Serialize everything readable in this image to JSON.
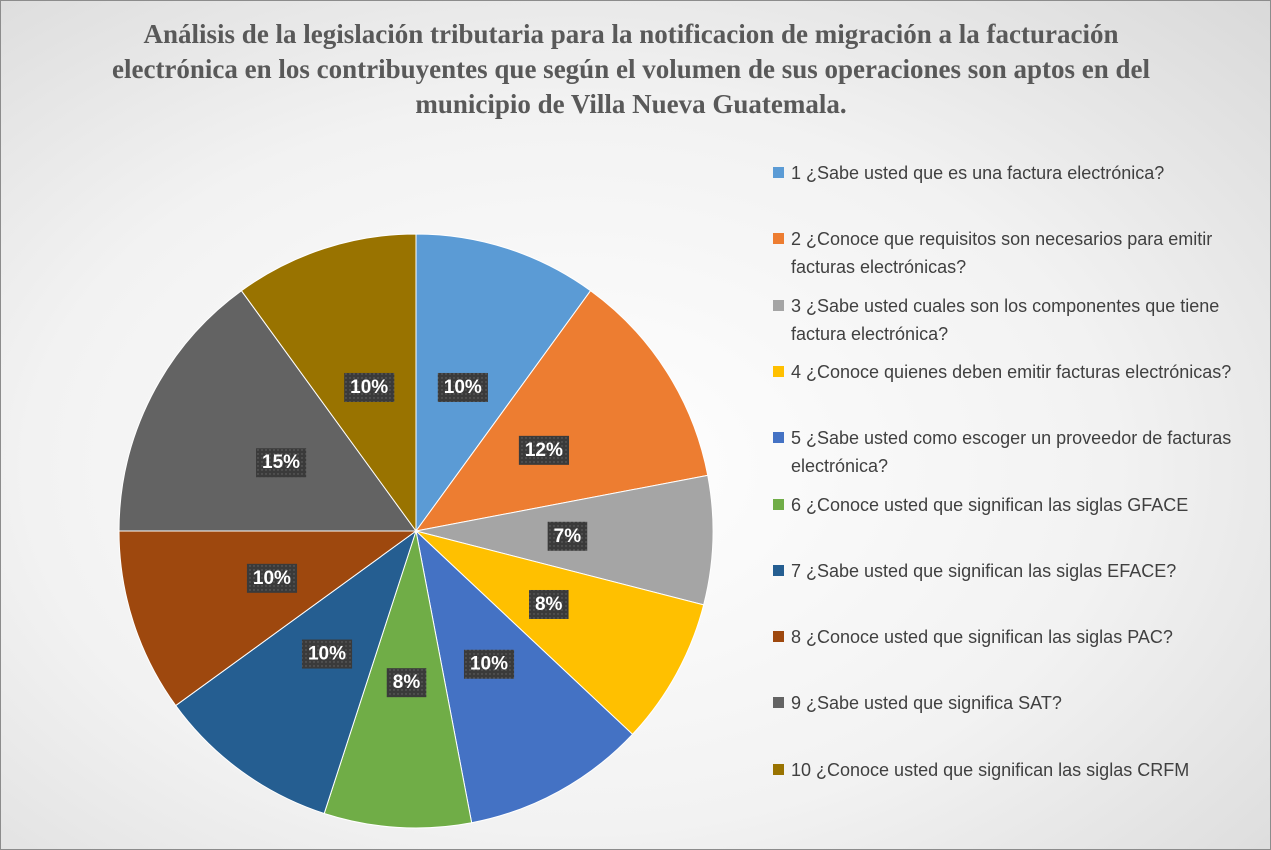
{
  "chart_data": {
    "type": "pie",
    "title": "Análisis de la legislación tributaria para la notificacion de migración a la facturación electrónica en los contribuyentes que según el volumen de sus operaciones son aptos en del municipio de Villa Nueva Guatemala.",
    "categories": [
      "1 ¿Sabe usted que es una factura electrónica?",
      "2 ¿Conoce que requisitos son necesarios para emitir facturas electrónicas?",
      "3 ¿Sabe usted cuales son los componentes que tiene factura electrónica?",
      "4 ¿Conoce quienes deben emitir facturas electrónicas?",
      "5 ¿Sabe usted como escoger un proveedor de facturas electrónica?",
      "6 ¿Conoce usted que significan las siglas GFACE",
      "7 ¿Sabe usted que significan las siglas EFACE?",
      "8 ¿Conoce usted que significan las siglas PAC?",
      "9 ¿Sabe usted que significa SAT?",
      "10 ¿Conoce usted que significan las siglas CRFM"
    ],
    "values": [
      10,
      12,
      7,
      8,
      10,
      8,
      10,
      10,
      15,
      10
    ],
    "value_labels": [
      "10%",
      "12%",
      "7%",
      "8%",
      "10%",
      "8%",
      "10%",
      "10%",
      "15%",
      "10%"
    ],
    "colors": [
      "#5b9bd5",
      "#ed7d31",
      "#a5a5a5",
      "#ffc000",
      "#4472c4",
      "#70ad47",
      "#255e91",
      "#9e480e",
      "#636363",
      "#997300"
    ],
    "legend": "right"
  }
}
